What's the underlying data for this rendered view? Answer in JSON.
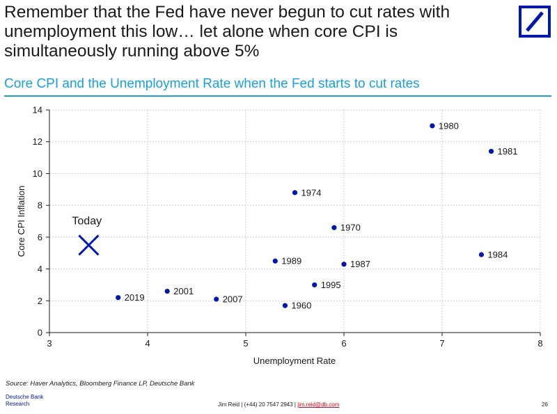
{
  "headline": "Remember that the Fed have never begun to cut rates with unemployment this low… let alone when core CPI is simultaneously running above 5%",
  "brand_color": "#0018a8",
  "accent_color": "#1a9fd9",
  "chart_data": {
    "type": "scatter",
    "title": "Core CPI and the Unemployment Rate when the Fed starts to cut rates",
    "xlabel": "Unemployment Rate",
    "ylabel": "Core CPI Inflation",
    "xlim": [
      3,
      8
    ],
    "ylim": [
      0,
      14
    ],
    "xticks": [
      3,
      4,
      5,
      6,
      7,
      8
    ],
    "yticks": [
      0,
      2,
      4,
      6,
      8,
      10,
      12,
      14
    ],
    "grid": "dashed",
    "points": [
      {
        "label": "1980",
        "x": 6.9,
        "y": 13.0
      },
      {
        "label": "1981",
        "x": 7.5,
        "y": 11.4
      },
      {
        "label": "1974",
        "x": 5.5,
        "y": 8.8
      },
      {
        "label": "1970",
        "x": 5.9,
        "y": 6.6
      },
      {
        "label": "1984",
        "x": 7.4,
        "y": 4.9
      },
      {
        "label": "1989",
        "x": 5.3,
        "y": 4.5
      },
      {
        "label": "1987",
        "x": 6.0,
        "y": 4.3
      },
      {
        "label": "1995",
        "x": 5.7,
        "y": 3.0
      },
      {
        "label": "2001",
        "x": 4.2,
        "y": 2.6
      },
      {
        "label": "2019",
        "x": 3.7,
        "y": 2.2
      },
      {
        "label": "2007",
        "x": 4.7,
        "y": 2.1
      },
      {
        "label": "1960",
        "x": 5.4,
        "y": 1.7
      }
    ],
    "annotation": {
      "label": "Today",
      "x": 3.4,
      "y": 5.5,
      "marker": "x"
    }
  },
  "source": "Source: Haver Analytics, Bloomberg Finance LP, Deutsche Bank",
  "footer": {
    "company": "Deutsche Bank",
    "division": "Research",
    "contact": "Jim Reid | (+44) 20 7547 2943 | ",
    "email": "jim.reid@db.com",
    "page": "26"
  },
  "icons": {
    "logo": "deutsche-bank-logo-icon"
  }
}
